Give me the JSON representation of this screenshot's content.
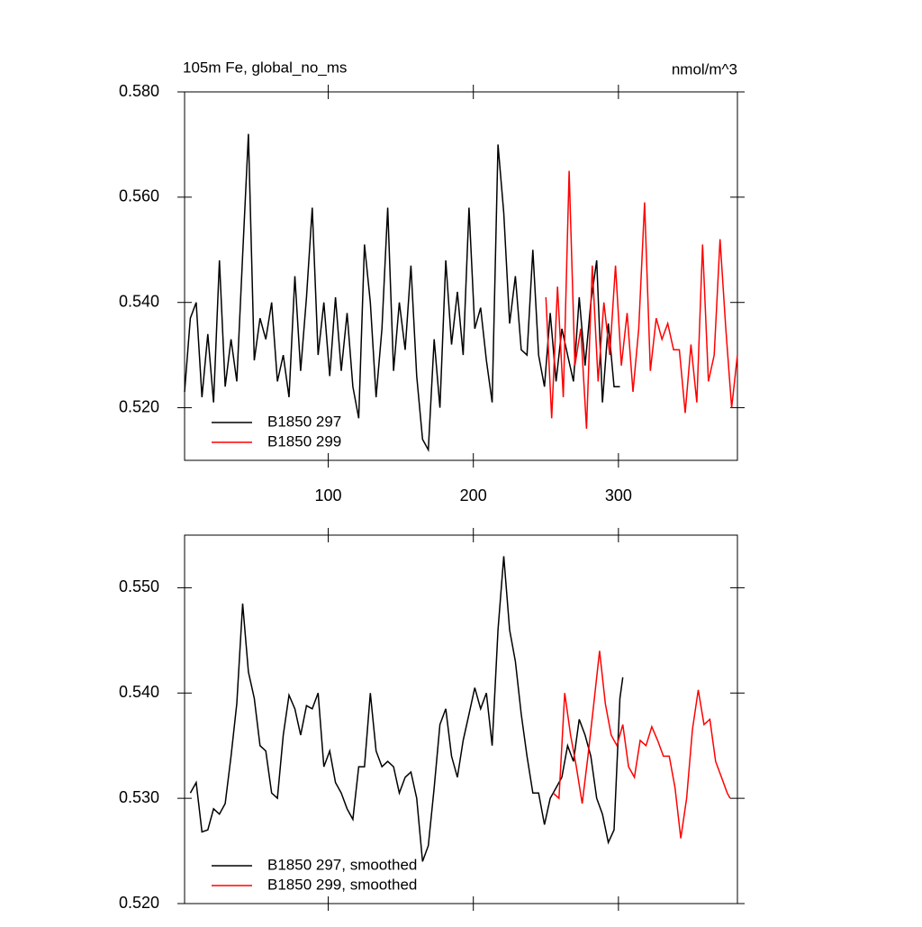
{
  "chart_data": [
    {
      "type": "line",
      "title": "105m Fe, global_no_ms",
      "units": "nmol/m^3",
      "xlim": [
        1,
        382
      ],
      "xticks": [
        100,
        200,
        300
      ],
      "ylim": [
        0.51,
        0.58
      ],
      "yticks": [
        {
          "value": 0.52,
          "label": "0.520"
        },
        {
          "value": 0.54,
          "label": "0.540"
        },
        {
          "value": 0.56,
          "label": "0.560"
        },
        {
          "value": 0.58,
          "label": "0.580"
        }
      ],
      "legend": "lower left",
      "series": [
        {
          "name": "B1850 297",
          "color": "#000000",
          "x": [
            1,
            5,
            9,
            13,
            17,
            21,
            25,
            29,
            33,
            37,
            41,
            45,
            49,
            53,
            57,
            61,
            65,
            69,
            73,
            77,
            81,
            85,
            89,
            93,
            97,
            101,
            105,
            109,
            113,
            117,
            121,
            125,
            129,
            133,
            137,
            141,
            145,
            149,
            153,
            157,
            161,
            165,
            169,
            173,
            177,
            181,
            185,
            189,
            193,
            197,
            201,
            205,
            209,
            213,
            217,
            221,
            225,
            229,
            233,
            237,
            241,
            245,
            249,
            253,
            257,
            261,
            265,
            269,
            273,
            277,
            281,
            285,
            289,
            293,
            297,
            301
          ],
          "values": [
            0.523,
            0.537,
            0.54,
            0.522,
            0.534,
            0.521,
            0.548,
            0.524,
            0.533,
            0.525,
            0.549,
            0.572,
            0.529,
            0.537,
            0.533,
            0.54,
            0.525,
            0.53,
            0.522,
            0.545,
            0.527,
            0.541,
            0.558,
            0.53,
            0.54,
            0.526,
            0.541,
            0.527,
            0.538,
            0.524,
            0.518,
            0.551,
            0.54,
            0.522,
            0.535,
            0.558,
            0.527,
            0.54,
            0.531,
            0.547,
            0.526,
            0.514,
            0.512,
            0.533,
            0.52,
            0.548,
            0.532,
            0.542,
            0.53,
            0.558,
            0.535,
            0.539,
            0.529,
            0.521,
            0.57,
            0.557,
            0.536,
            0.545,
            0.531,
            0.53,
            0.55,
            0.53,
            0.524,
            0.538,
            0.525,
            0.535,
            0.53,
            0.525,
            0.541,
            0.528,
            0.54,
            0.548,
            0.521,
            0.536,
            0.524,
            0.524
          ]
        },
        {
          "name": "B1850 299",
          "color": "#ff0000",
          "x": [
            250,
            254,
            258,
            262,
            266,
            270,
            274,
            278,
            282,
            286,
            290,
            294,
            298,
            302,
            306,
            310,
            314,
            318,
            322,
            326,
            330,
            334,
            338,
            342,
            346,
            350,
            354,
            358,
            362,
            366,
            370,
            374,
            378,
            382
          ],
          "values": [
            0.541,
            0.518,
            0.543,
            0.522,
            0.565,
            0.528,
            0.535,
            0.516,
            0.547,
            0.525,
            0.54,
            0.53,
            0.547,
            0.528,
            0.538,
            0.523,
            0.535,
            0.559,
            0.527,
            0.537,
            0.533,
            0.536,
            0.531,
            0.531,
            0.519,
            0.532,
            0.521,
            0.551,
            0.525,
            0.53,
            0.552,
            0.535,
            0.52,
            0.53
          ]
        }
      ]
    },
    {
      "type": "line",
      "xlim": [
        1,
        382
      ],
      "xticks": [
        100,
        200,
        300
      ],
      "ylim": [
        0.52,
        0.555
      ],
      "yticks": [
        {
          "value": 0.52,
          "label": "0.520"
        },
        {
          "value": 0.53,
          "label": "0.530"
        },
        {
          "value": 0.54,
          "label": "0.540"
        },
        {
          "value": 0.55,
          "label": "0.550"
        }
      ],
      "legend": "lower left",
      "series": [
        {
          "name": "B1850 297, smoothed",
          "color": "#000000",
          "x": [
            5,
            9,
            13,
            17,
            21,
            25,
            29,
            33,
            37,
            41,
            45,
            49,
            53,
            57,
            61,
            65,
            69,
            73,
            77,
            81,
            85,
            89,
            93,
            97,
            101,
            105,
            109,
            113,
            117,
            121,
            125,
            129,
            133,
            137,
            141,
            145,
            149,
            153,
            157,
            161,
            165,
            169,
            173,
            177,
            181,
            185,
            189,
            193,
            197,
            201,
            205,
            209,
            213,
            217,
            221,
            225,
            229,
            233,
            237,
            241,
            245,
            249,
            253,
            257,
            261,
            265,
            269,
            273,
            277,
            281,
            285,
            289,
            293,
            297,
            301,
            303
          ],
          "values": [
            0.5305,
            0.5315,
            0.5268,
            0.527,
            0.529,
            0.5285,
            0.5295,
            0.534,
            0.539,
            0.5485,
            0.542,
            0.5395,
            0.535,
            0.5345,
            0.5305,
            0.53,
            0.536,
            0.5398,
            0.5385,
            0.536,
            0.5388,
            0.5385,
            0.54,
            0.533,
            0.5345,
            0.5315,
            0.5305,
            0.529,
            0.528,
            0.533,
            0.533,
            0.54,
            0.5345,
            0.533,
            0.5335,
            0.533,
            0.5305,
            0.532,
            0.5325,
            0.53,
            0.524,
            0.5255,
            0.531,
            0.537,
            0.5385,
            0.534,
            0.532,
            0.5355,
            0.538,
            0.5405,
            0.5385,
            0.54,
            0.535,
            0.546,
            0.553,
            0.546,
            0.543,
            0.538,
            0.534,
            0.5305,
            0.5305,
            0.5275,
            0.53,
            0.531,
            0.532,
            0.535,
            0.5335,
            0.5375,
            0.536,
            0.534,
            0.53,
            0.5285,
            0.5258,
            0.527,
            0.5395,
            0.5415
          ]
        },
        {
          "name": "B1850 299, smoothed",
          "color": "#ff0000",
          "x": [
            255,
            259,
            263,
            267,
            271,
            275,
            279,
            283,
            287,
            291,
            295,
            299,
            303,
            307,
            311,
            315,
            319,
            323,
            327,
            331,
            335,
            339,
            343,
            347,
            351,
            355,
            359,
            363,
            367,
            371,
            375,
            377
          ],
          "values": [
            0.5305,
            0.53,
            0.54,
            0.536,
            0.533,
            0.5295,
            0.534,
            0.539,
            0.544,
            0.539,
            0.536,
            0.535,
            0.537,
            0.533,
            0.532,
            0.5355,
            0.535,
            0.5368,
            0.5355,
            0.534,
            0.534,
            0.531,
            0.5262,
            0.53,
            0.5365,
            0.5403,
            0.537,
            0.5375,
            0.5335,
            0.532,
            0.5305,
            0.53
          ]
        }
      ]
    }
  ]
}
